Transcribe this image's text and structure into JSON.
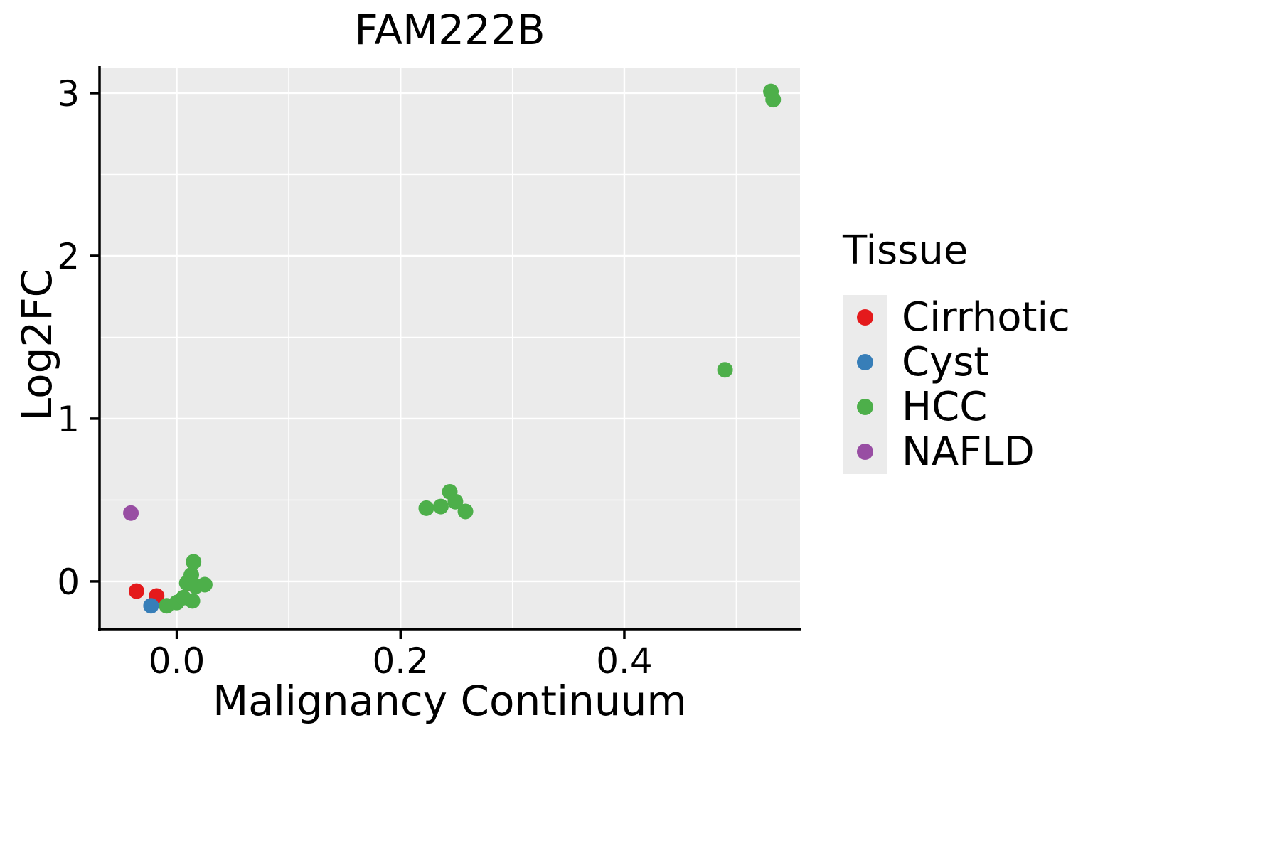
{
  "chart_data": {
    "type": "scatter",
    "title": "FAM222B",
    "xlabel": "Malignancy Continuum",
    "ylabel": "Log2FC",
    "xlim": [
      -0.069,
      0.557
    ],
    "ylim": [
      -0.293,
      3.157
    ],
    "x_ticks": [
      0.0,
      0.2,
      0.4
    ],
    "x_tick_labels": [
      "0.0",
      "0.2",
      "0.4"
    ],
    "x_minor_ticks": [
      0.1,
      0.3,
      0.5
    ],
    "y_ticks": [
      0,
      1,
      2,
      3
    ],
    "y_tick_labels": [
      "0",
      "1",
      "2",
      "3"
    ],
    "y_minor_ticks": [
      0.5,
      1.5,
      2.5
    ],
    "panel_bg": "#EBEBEB",
    "grid_color": "#FFFFFF",
    "axis_color": "#000000",
    "point_radius": 11,
    "legend_title": "Tissue",
    "legend_position": "right",
    "series": [
      {
        "name": "Cirrhotic",
        "color": "#E41A1C",
        "points": [
          [
            -0.036,
            -0.06
          ],
          [
            -0.018,
            -0.09
          ],
          [
            0.015,
            -0.02
          ]
        ]
      },
      {
        "name": "Cyst",
        "color": "#377EB8",
        "points": [
          [
            -0.023,
            -0.15
          ]
        ]
      },
      {
        "name": "HCC",
        "color": "#4DAF4A",
        "points": [
          [
            -0.009,
            -0.15
          ],
          [
            0.0,
            -0.13
          ],
          [
            0.006,
            -0.1
          ],
          [
            0.014,
            -0.12
          ],
          [
            0.009,
            -0.01
          ],
          [
            0.013,
            0.04
          ],
          [
            0.015,
            0.12
          ],
          [
            0.017,
            -0.03
          ],
          [
            0.025,
            -0.02
          ],
          [
            0.223,
            0.45
          ],
          [
            0.236,
            0.46
          ],
          [
            0.244,
            0.55
          ],
          [
            0.249,
            0.49
          ],
          [
            0.258,
            0.43
          ],
          [
            0.49,
            1.3
          ],
          [
            0.531,
            3.01
          ],
          [
            0.533,
            2.96
          ]
        ]
      },
      {
        "name": "NAFLD",
        "color": "#984EA3",
        "points": [
          [
            -0.041,
            0.42
          ]
        ]
      }
    ]
  }
}
